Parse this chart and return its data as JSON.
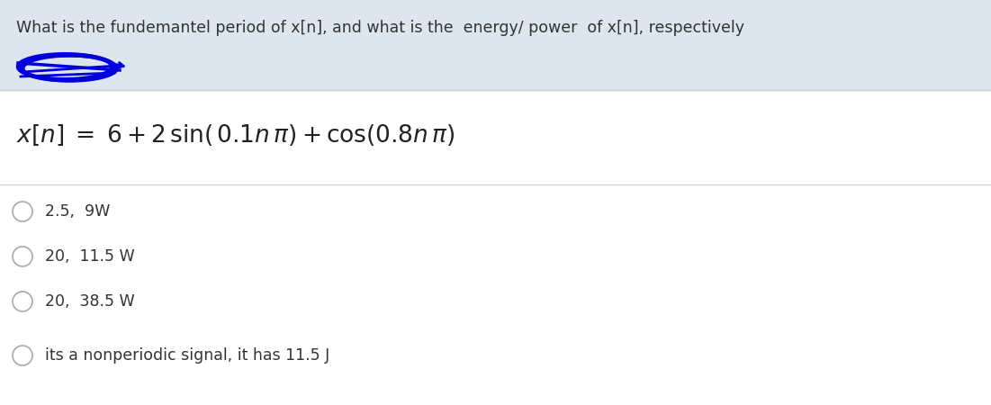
{
  "title": "What is the fundemantel period of x[n], and what is the  energy/ power  of x[n], respectively",
  "title_bg_color": "#dde6ee",
  "title_fontsize": 12.5,
  "equation_fontsize": 19,
  "options": [
    "2.5,  9W",
    "20,  11.5 W",
    "20,  38.5 W",
    "its a nonperiodic signal, it has 11.5 J"
  ],
  "options_fontsize": 12.5,
  "bg_color": "#ffffff",
  "separator_color": "#c8d0d8",
  "circle_color": "#aaaaaa",
  "scribble_color": "#0000dd",
  "text_color": "#333333",
  "title_text_color": "#333333"
}
